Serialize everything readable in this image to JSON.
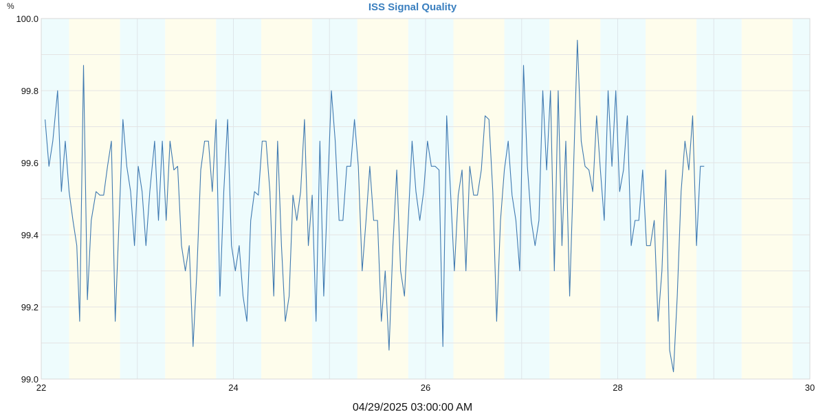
{
  "chart_data": {
    "type": "line",
    "title": "ISS Signal Quality",
    "unit_label": "%",
    "xlabel": "04/29/2025 03:00:00 AM",
    "ylabel": "",
    "xlim": [
      22,
      30
    ],
    "ylim": [
      99.0,
      100.0
    ],
    "x_ticks": [
      22,
      24,
      26,
      28,
      30
    ],
    "x_tick_labels": [
      "22",
      "24",
      "26",
      "28",
      "30"
    ],
    "y_ticks": [
      99.0,
      99.2,
      99.4,
      99.6,
      99.8,
      100.0
    ],
    "y_tick_labels": [
      "99.0",
      "99.2",
      "99.4",
      "99.6",
      "99.8",
      "100.0"
    ],
    "grid": true,
    "line_color": "#3d78b0",
    "band_colors": {
      "cyan": "#eefcfd",
      "yellow": "#fefdec"
    },
    "bands": [
      {
        "start": 22.0,
        "end": 22.29,
        "color": "cyan"
      },
      {
        "start": 22.29,
        "end": 22.82,
        "color": "yellow"
      },
      {
        "start": 22.82,
        "end": 23.29,
        "color": "cyan"
      },
      {
        "start": 23.29,
        "end": 23.82,
        "color": "yellow"
      },
      {
        "start": 23.82,
        "end": 24.29,
        "color": "cyan"
      },
      {
        "start": 24.29,
        "end": 24.82,
        "color": "yellow"
      },
      {
        "start": 24.82,
        "end": 25.29,
        "color": "cyan"
      },
      {
        "start": 25.29,
        "end": 25.82,
        "color": "yellow"
      },
      {
        "start": 25.82,
        "end": 26.29,
        "color": "cyan"
      },
      {
        "start": 26.29,
        "end": 26.82,
        "color": "yellow"
      },
      {
        "start": 26.82,
        "end": 27.29,
        "color": "cyan"
      },
      {
        "start": 27.29,
        "end": 27.82,
        "color": "yellow"
      },
      {
        "start": 27.82,
        "end": 28.29,
        "color": "cyan"
      },
      {
        "start": 28.29,
        "end": 28.82,
        "color": "yellow"
      },
      {
        "start": 28.82,
        "end": 29.29,
        "color": "cyan"
      },
      {
        "start": 29.29,
        "end": 29.82,
        "color": "yellow"
      },
      {
        "start": 29.82,
        "end": 30.0,
        "color": "cyan"
      }
    ],
    "series": [
      {
        "values": [
          [
            22.04,
            99.72
          ],
          [
            22.08,
            99.59
          ],
          [
            22.12,
            99.66
          ],
          [
            22.17,
            99.8
          ],
          [
            22.21,
            99.52
          ],
          [
            22.25,
            99.66
          ],
          [
            22.29,
            99.52
          ],
          [
            22.33,
            99.44
          ],
          [
            22.37,
            99.37
          ],
          [
            22.4,
            99.16
          ],
          [
            22.44,
            99.87
          ],
          [
            22.48,
            99.22
          ],
          [
            22.52,
            99.44
          ],
          [
            22.57,
            99.52
          ],
          [
            22.61,
            99.51
          ],
          [
            22.65,
            99.51
          ],
          [
            22.69,
            99.59
          ],
          [
            22.73,
            99.66
          ],
          [
            22.77,
            99.16
          ],
          [
            22.81,
            99.44
          ],
          [
            22.85,
            99.72
          ],
          [
            22.89,
            99.59
          ],
          [
            22.93,
            99.52
          ],
          [
            22.97,
            99.37
          ],
          [
            23.01,
            99.59
          ],
          [
            23.05,
            99.52
          ],
          [
            23.09,
            99.37
          ],
          [
            23.13,
            99.52
          ],
          [
            23.18,
            99.66
          ],
          [
            23.22,
            99.44
          ],
          [
            23.26,
            99.66
          ],
          [
            23.3,
            99.44
          ],
          [
            23.34,
            99.66
          ],
          [
            23.38,
            99.58
          ],
          [
            23.42,
            99.59
          ],
          [
            23.46,
            99.37
          ],
          [
            23.5,
            99.3
          ],
          [
            23.54,
            99.37
          ],
          [
            23.58,
            99.09
          ],
          [
            23.62,
            99.3
          ],
          [
            23.66,
            99.58
          ],
          [
            23.7,
            99.66
          ],
          [
            23.74,
            99.66
          ],
          [
            23.78,
            99.52
          ],
          [
            23.82,
            99.72
          ],
          [
            23.86,
            99.23
          ],
          [
            23.9,
            99.52
          ],
          [
            23.94,
            99.72
          ],
          [
            23.98,
            99.37
          ],
          [
            24.02,
            99.3
          ],
          [
            24.06,
            99.37
          ],
          [
            24.1,
            99.23
          ],
          [
            24.14,
            99.16
          ],
          [
            24.18,
            99.44
          ],
          [
            24.22,
            99.52
          ],
          [
            24.26,
            99.51
          ],
          [
            24.3,
            99.66
          ],
          [
            24.34,
            99.66
          ],
          [
            24.38,
            99.52
          ],
          [
            24.42,
            99.23
          ],
          [
            24.46,
            99.66
          ],
          [
            24.5,
            99.37
          ],
          [
            24.54,
            99.16
          ],
          [
            24.58,
            99.23
          ],
          [
            24.62,
            99.51
          ],
          [
            24.66,
            99.44
          ],
          [
            24.7,
            99.52
          ],
          [
            24.74,
            99.72
          ],
          [
            24.78,
            99.37
          ],
          [
            24.82,
            99.51
          ],
          [
            24.86,
            99.16
          ],
          [
            24.9,
            99.66
          ],
          [
            24.94,
            99.23
          ],
          [
            24.98,
            99.52
          ],
          [
            25.02,
            99.8
          ],
          [
            25.06,
            99.66
          ],
          [
            25.1,
            99.44
          ],
          [
            25.14,
            99.44
          ],
          [
            25.18,
            99.59
          ],
          [
            25.22,
            99.59
          ],
          [
            25.26,
            99.72
          ],
          [
            25.3,
            99.59
          ],
          [
            25.34,
            99.3
          ],
          [
            25.38,
            99.44
          ],
          [
            25.42,
            99.59
          ],
          [
            25.46,
            99.44
          ],
          [
            25.5,
            99.44
          ],
          [
            25.54,
            99.16
          ],
          [
            25.58,
            99.3
          ],
          [
            25.62,
            99.08
          ],
          [
            25.66,
            99.37
          ],
          [
            25.7,
            99.58
          ],
          [
            25.74,
            99.3
          ],
          [
            25.78,
            99.23
          ],
          [
            25.82,
            99.44
          ],
          [
            25.86,
            99.66
          ],
          [
            25.9,
            99.52
          ],
          [
            25.94,
            99.44
          ],
          [
            25.98,
            99.52
          ],
          [
            26.02,
            99.66
          ],
          [
            26.06,
            99.59
          ],
          [
            26.1,
            99.59
          ],
          [
            26.14,
            99.58
          ],
          [
            26.18,
            99.09
          ],
          [
            26.22,
            99.73
          ],
          [
            26.26,
            99.52
          ],
          [
            26.3,
            99.3
          ],
          [
            26.34,
            99.51
          ],
          [
            26.38,
            99.58
          ],
          [
            26.42,
            99.3
          ],
          [
            26.46,
            99.59
          ],
          [
            26.5,
            99.51
          ],
          [
            26.54,
            99.51
          ],
          [
            26.58,
            99.58
          ],
          [
            26.62,
            99.73
          ],
          [
            26.66,
            99.72
          ],
          [
            26.7,
            99.52
          ],
          [
            26.74,
            99.16
          ],
          [
            26.78,
            99.44
          ],
          [
            26.82,
            99.58
          ],
          [
            26.86,
            99.66
          ],
          [
            26.9,
            99.51
          ],
          [
            26.94,
            99.44
          ],
          [
            26.98,
            99.3
          ],
          [
            27.02,
            99.87
          ],
          [
            27.06,
            99.59
          ],
          [
            27.1,
            99.44
          ],
          [
            27.14,
            99.37
          ],
          [
            27.18,
            99.44
          ],
          [
            27.22,
            99.8
          ],
          [
            27.26,
            99.58
          ],
          [
            27.3,
            99.8
          ],
          [
            27.34,
            99.3
          ],
          [
            27.38,
            99.8
          ],
          [
            27.42,
            99.37
          ],
          [
            27.46,
            99.66
          ],
          [
            27.5,
            99.23
          ],
          [
            27.54,
            99.58
          ],
          [
            27.58,
            99.94
          ],
          [
            27.62,
            99.66
          ],
          [
            27.66,
            99.59
          ],
          [
            27.7,
            99.58
          ],
          [
            27.74,
            99.52
          ],
          [
            27.78,
            99.73
          ],
          [
            27.82,
            99.58
          ],
          [
            27.86,
            99.44
          ],
          [
            27.9,
            99.8
          ],
          [
            27.94,
            99.59
          ],
          [
            27.98,
            99.8
          ],
          [
            28.02,
            99.52
          ],
          [
            28.06,
            99.58
          ],
          [
            28.1,
            99.73
          ],
          [
            28.14,
            99.37
          ],
          [
            28.18,
            99.44
          ],
          [
            28.22,
            99.44
          ],
          [
            28.26,
            99.58
          ],
          [
            28.3,
            99.37
          ],
          [
            28.34,
            99.37
          ],
          [
            28.38,
            99.44
          ],
          [
            28.42,
            99.16
          ],
          [
            28.46,
            99.3
          ],
          [
            28.5,
            99.58
          ],
          [
            28.54,
            99.08
          ],
          [
            28.58,
            99.02
          ],
          [
            28.62,
            99.23
          ],
          [
            28.66,
            99.52
          ],
          [
            28.7,
            99.66
          ],
          [
            28.74,
            99.58
          ],
          [
            28.78,
            99.73
          ],
          [
            28.82,
            99.37
          ],
          [
            28.86,
            99.59
          ],
          [
            28.9,
            99.59
          ]
        ]
      }
    ]
  }
}
